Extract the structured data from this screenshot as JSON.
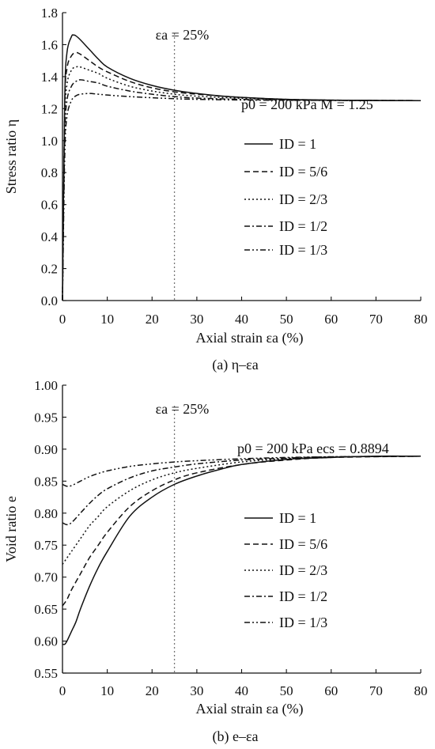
{
  "chart_data": [
    {
      "type": "line",
      "panel_caption": "(a)  η–εa",
      "xlabel": "Axial strain εa (%)",
      "ylabel": "Stress ratio η",
      "xlim": [
        0,
        80
      ],
      "ylim": [
        0,
        1.8
      ],
      "xticks": [
        "0",
        "10",
        "20",
        "30",
        "40",
        "50",
        "60",
        "70",
        "80"
      ],
      "yticks": [
        "0.0",
        "0.2",
        "0.4",
        "0.6",
        "0.8",
        "1.0",
        "1.2",
        "1.4",
        "1.6",
        "1.8"
      ],
      "vline": {
        "x": 25,
        "label": "εa = 25%"
      },
      "annotation": "p0 = 200 kPa   M = 1.25",
      "legend_position": "right-center",
      "series": [
        {
          "name": "ID = 1",
          "dash": "solid",
          "points": [
            [
              0,
              0
            ],
            [
              0.5,
              1.25
            ],
            [
              1,
              1.55
            ],
            [
              2,
              1.65
            ],
            [
              2.5,
              1.66
            ],
            [
              3,
              1.655
            ],
            [
              4,
              1.63
            ],
            [
              6,
              1.57
            ],
            [
              8,
              1.51
            ],
            [
              10,
              1.46
            ],
            [
              15,
              1.39
            ],
            [
              20,
              1.345
            ],
            [
              25,
              1.315
            ],
            [
              30,
              1.295
            ],
            [
              35,
              1.28
            ],
            [
              40,
              1.27
            ],
            [
              50,
              1.258
            ],
            [
              60,
              1.253
            ],
            [
              70,
              1.251
            ],
            [
              80,
              1.25
            ]
          ]
        },
        {
          "name": "ID = 5/6",
          "dash": "dashed",
          "points": [
            [
              0,
              0
            ],
            [
              0.5,
              1.2
            ],
            [
              1,
              1.45
            ],
            [
              2,
              1.53
            ],
            [
              3,
              1.55
            ],
            [
              4,
              1.54
            ],
            [
              6,
              1.5
            ],
            [
              8,
              1.46
            ],
            [
              10,
              1.43
            ],
            [
              15,
              1.37
            ],
            [
              20,
              1.33
            ],
            [
              25,
              1.305
            ],
            [
              30,
              1.29
            ],
            [
              40,
              1.27
            ],
            [
              50,
              1.258
            ],
            [
              60,
              1.253
            ],
            [
              80,
              1.25
            ]
          ]
        },
        {
          "name": "ID = 2/3",
          "dash": "dotted",
          "points": [
            [
              0,
              0
            ],
            [
              0.5,
              1.1
            ],
            [
              1,
              1.35
            ],
            [
              2,
              1.44
            ],
            [
              3,
              1.46
            ],
            [
              4,
              1.46
            ],
            [
              6,
              1.44
            ],
            [
              8,
              1.42
            ],
            [
              10,
              1.39
            ],
            [
              15,
              1.34
            ],
            [
              20,
              1.31
            ],
            [
              25,
              1.29
            ],
            [
              30,
              1.278
            ],
            [
              40,
              1.264
            ],
            [
              50,
              1.256
            ],
            [
              60,
              1.252
            ],
            [
              80,
              1.25
            ]
          ]
        },
        {
          "name": "ID = 1/2",
          "dash": "dashdot",
          "points": [
            [
              0,
              0
            ],
            [
              0.5,
              1.0
            ],
            [
              1,
              1.25
            ],
            [
              2,
              1.34
            ],
            [
              3,
              1.37
            ],
            [
              4,
              1.38
            ],
            [
              6,
              1.37
            ],
            [
              8,
              1.36
            ],
            [
              10,
              1.34
            ],
            [
              15,
              1.31
            ],
            [
              20,
              1.29
            ],
            [
              25,
              1.275
            ],
            [
              30,
              1.266
            ],
            [
              40,
              1.258
            ],
            [
              50,
              1.253
            ],
            [
              80,
              1.25
            ]
          ]
        },
        {
          "name": "ID = 1/3",
          "dash": "dashdotdot",
          "points": [
            [
              0,
              0
            ],
            [
              0.5,
              0.9
            ],
            [
              1,
              1.15
            ],
            [
              2,
              1.25
            ],
            [
              3,
              1.28
            ],
            [
              4,
              1.29
            ],
            [
              6,
              1.295
            ],
            [
              8,
              1.29
            ],
            [
              10,
              1.285
            ],
            [
              15,
              1.275
            ],
            [
              20,
              1.268
            ],
            [
              25,
              1.262
            ],
            [
              30,
              1.258
            ],
            [
              40,
              1.254
            ],
            [
              50,
              1.252
            ],
            [
              80,
              1.25
            ]
          ]
        }
      ]
    },
    {
      "type": "line",
      "panel_caption": "(b) e–εa",
      "xlabel": "Axial strain εa (%)",
      "ylabel": "Void ratio e",
      "xlim": [
        0,
        80
      ],
      "ylim": [
        0.55,
        1.0
      ],
      "xticks": [
        "0",
        "10",
        "20",
        "30",
        "40",
        "50",
        "60",
        "70",
        "80"
      ],
      "yticks": [
        "0.55",
        "0.60",
        "0.65",
        "0.70",
        "0.75",
        "0.80",
        "0.85",
        "0.90",
        "0.95",
        "1.00"
      ],
      "vline": {
        "x": 25,
        "label": "εa = 25%"
      },
      "annotation": "p0 = 200 kPa   ecs = 0.8894",
      "legend_position": "right-center",
      "series": [
        {
          "name": "ID = 1",
          "dash": "solid",
          "points": [
            [
              0,
              0.595
            ],
            [
              0.5,
              0.595
            ],
            [
              1,
              0.6
            ],
            [
              2,
              0.615
            ],
            [
              3,
              0.63
            ],
            [
              4,
              0.65
            ],
            [
              6,
              0.685
            ],
            [
              8,
              0.715
            ],
            [
              10,
              0.74
            ],
            [
              15,
              0.795
            ],
            [
              20,
              0.825
            ],
            [
              25,
              0.845
            ],
            [
              30,
              0.858
            ],
            [
              35,
              0.868
            ],
            [
              40,
              0.876
            ],
            [
              50,
              0.884
            ],
            [
              60,
              0.887
            ],
            [
              70,
              0.889
            ],
            [
              80,
              0.889
            ]
          ]
        },
        {
          "name": "ID = 5/6",
          "dash": "dashed",
          "points": [
            [
              0,
              0.655
            ],
            [
              1,
              0.665
            ],
            [
              2,
              0.68
            ],
            [
              4,
              0.705
            ],
            [
              6,
              0.73
            ],
            [
              8,
              0.75
            ],
            [
              10,
              0.77
            ],
            [
              15,
              0.81
            ],
            [
              20,
              0.835
            ],
            [
              25,
              0.852
            ],
            [
              30,
              0.863
            ],
            [
              40,
              0.876
            ],
            [
              50,
              0.883
            ],
            [
              60,
              0.887
            ],
            [
              80,
              0.889
            ]
          ]
        },
        {
          "name": "ID = 2/3",
          "dash": "dotted",
          "points": [
            [
              0,
              0.72
            ],
            [
              1,
              0.73
            ],
            [
              2,
              0.74
            ],
            [
              4,
              0.76
            ],
            [
              6,
              0.78
            ],
            [
              8,
              0.795
            ],
            [
              10,
              0.81
            ],
            [
              15,
              0.835
            ],
            [
              20,
              0.852
            ],
            [
              25,
              0.863
            ],
            [
              30,
              0.87
            ],
            [
              40,
              0.88
            ],
            [
              50,
              0.885
            ],
            [
              60,
              0.888
            ],
            [
              80,
              0.889
            ]
          ]
        },
        {
          "name": "ID = 1/2",
          "dash": "dashdot",
          "points": [
            [
              0,
              0.785
            ],
            [
              1,
              0.782
            ],
            [
              2,
              0.785
            ],
            [
              4,
              0.8
            ],
            [
              6,
              0.815
            ],
            [
              8,
              0.828
            ],
            [
              10,
              0.838
            ],
            [
              15,
              0.855
            ],
            [
              20,
              0.866
            ],
            [
              25,
              0.872
            ],
            [
              30,
              0.877
            ],
            [
              40,
              0.883
            ],
            [
              50,
              0.886
            ],
            [
              60,
              0.888
            ],
            [
              80,
              0.889
            ]
          ]
        },
        {
          "name": "ID = 1/3",
          "dash": "dashdotdot",
          "points": [
            [
              0,
              0.845
            ],
            [
              1,
              0.842
            ],
            [
              2,
              0.843
            ],
            [
              4,
              0.85
            ],
            [
              6,
              0.857
            ],
            [
              8,
              0.862
            ],
            [
              10,
              0.866
            ],
            [
              15,
              0.873
            ],
            [
              20,
              0.877
            ],
            [
              25,
              0.88
            ],
            [
              30,
              0.882
            ],
            [
              40,
              0.885
            ],
            [
              50,
              0.887
            ],
            [
              60,
              0.888
            ],
            [
              80,
              0.889
            ]
          ]
        }
      ]
    }
  ]
}
